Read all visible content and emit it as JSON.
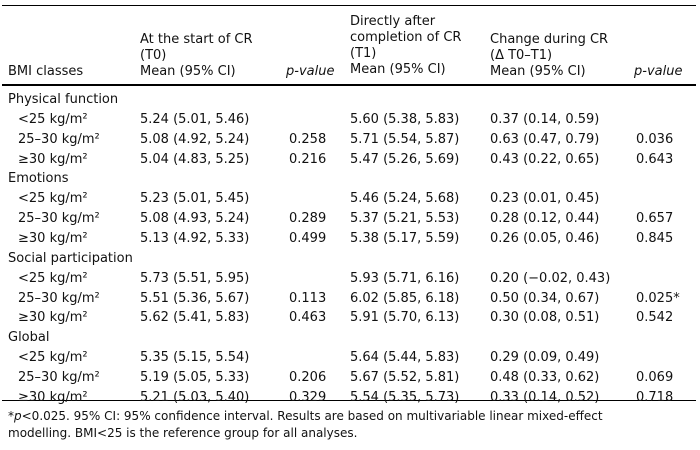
{
  "headers": {
    "col1": "BMI classes",
    "col2_lines": [
      "At the start of CR",
      "(T0)",
      "Mean (95% CI)"
    ],
    "col3": "p-value",
    "col4_lines": [
      "Directly after",
      "completion of CR",
      "(T1)",
      "Mean (95% CI)"
    ],
    "col5_lines": [
      "Change during CR",
      "(Δ T0–T1)",
      "Mean (95% CI)"
    ],
    "col6": "p-value"
  },
  "sections": [
    {
      "title": "Physical function",
      "rows": [
        {
          "bmi": "<25 kg/m²",
          "t0": "5.24 (5.01, 5.46)",
          "p1": "",
          "t1": "5.60 (5.38, 5.83)",
          "delta": "0.37 (0.14, 0.59)",
          "p2": ""
        },
        {
          "bmi": "25–30 kg/m²",
          "t0": "5.08 (4.92, 5.24)",
          "p1": "0.258",
          "t1": "5.71 (5.54, 5.87)",
          "delta": "0.63 (0.47, 0.79)",
          "p2": "0.036"
        },
        {
          "bmi": "≥30 kg/m²",
          "t0": "5.04 (4.83, 5.25)",
          "p1": "0.216",
          "t1": "5.47 (5.26, 5.69)",
          "delta": "0.43 (0.22, 0.65)",
          "p2": "0.643"
        }
      ]
    },
    {
      "title": "Emotions",
      "rows": [
        {
          "bmi": "<25 kg/m²",
          "t0": "5.23 (5.01, 5.45)",
          "p1": "",
          "t1": "5.46 (5.24, 5.68)",
          "delta": "0.23 (0.01, 0.45)",
          "p2": ""
        },
        {
          "bmi": "25–30 kg/m²",
          "t0": "5.08 (4.93, 5.24)",
          "p1": "0.289",
          "t1": "5.37 (5.21, 5.53)",
          "delta": "0.28 (0.12, 0.44)",
          "p2": "0.657"
        },
        {
          "bmi": "≥30 kg/m²",
          "t0": "5.13 (4.92, 5.33)",
          "p1": "0.499",
          "t1": "5.38 (5.17, 5.59)",
          "delta": "0.26 (0.05, 0.46)",
          "p2": "0.845"
        }
      ]
    },
    {
      "title": "Social participation",
      "rows": [
        {
          "bmi": "<25 kg/m²",
          "t0": "5.73 (5.51, 5.95)",
          "p1": "",
          "t1": "5.93 (5.71, 6.16)",
          "delta": "0.20 (−0.02, 0.43)",
          "p2": ""
        },
        {
          "bmi": "25–30 kg/m²",
          "t0": "5.51 (5.36, 5.67)",
          "p1": "0.113",
          "t1": "6.02 (5.85, 6.18)",
          "delta": "0.50 (0.34, 0.67)",
          "p2": "0.025*"
        },
        {
          "bmi": "≥30 kg/m²",
          "t0": "5.62 (5.41, 5.83)",
          "p1": "0.463",
          "t1": "5.91 (5.70, 6.13)",
          "delta": "0.30 (0.08, 0.51)",
          "p2": "0.542"
        }
      ]
    },
    {
      "title": "Global",
      "rows": [
        {
          "bmi": "<25 kg/m²",
          "t0": "5.35 (5.15, 5.54)",
          "p1": "",
          "t1": "5.64 (5.44, 5.83)",
          "delta": "0.29 (0.09, 0.49)",
          "p2": ""
        },
        {
          "bmi": "25–30 kg/m²",
          "t0": "5.19 (5.05, 5.33)",
          "p1": "0.206",
          "t1": "5.67 (5.52, 5.81)",
          "delta": "0.48 (0.33, 0.62)",
          "p2": "0.069"
        },
        {
          "bmi": "≥30 kg/m²",
          "t0": "5.21 (5.03, 5.40)",
          "p1": "0.329",
          "t1": "5.54 (5.35, 5.73)",
          "delta": "0.33 (0.14, 0.52)",
          "p2": "0.718"
        }
      ]
    }
  ],
  "footnote": {
    "symbol": "*p",
    "line1": "<0.025. 95% CI: 95% confidence interval. Results are based on multivariable linear mixed-effect",
    "line2": "modelling. BMI<25 is the reference group for all analyses."
  }
}
